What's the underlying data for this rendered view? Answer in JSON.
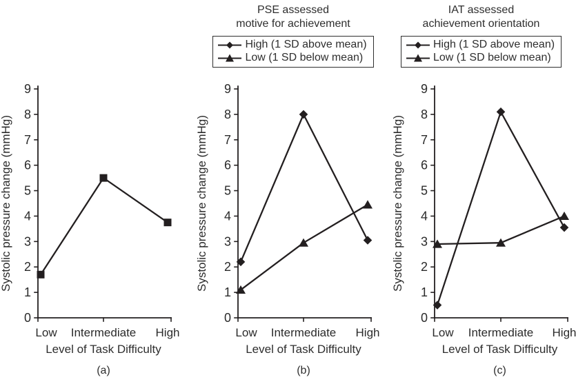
{
  "figure": {
    "background": "#ffffff",
    "ink_color": "#231f20"
  },
  "chart_data": [
    {
      "type": "line",
      "panel_label": "(a)",
      "title_lines": [],
      "categories": [
        "Low",
        "Intermediate",
        "High"
      ],
      "xlabel": "Level of Task Difficulty",
      "ylabel": "Systolic pressure change (mmHg)",
      "ylim": [
        0,
        9
      ],
      "ytick_step": 1,
      "grid": false,
      "legend": null,
      "series": [
        {
          "name": "Systolic pressure change",
          "marker": "square",
          "color": "#231f20",
          "values": [
            1.7,
            5.5,
            3.75
          ]
        }
      ]
    },
    {
      "type": "line",
      "panel_label": "(b)",
      "title_lines": [
        "PSE assessed",
        "motive for achievement"
      ],
      "categories": [
        "Low",
        "Intermediate",
        "High"
      ],
      "xlabel": "Level of Task Difficulty",
      "ylabel": "Systolic pressure change (mmHg)",
      "ylim": [
        0,
        9
      ],
      "ytick_step": 1,
      "grid": false,
      "legend": {
        "position": "top",
        "border": true,
        "items": [
          {
            "label": "High (1 SD above mean)",
            "marker": "diamond"
          },
          {
            "label": "Low (1 SD below mean)",
            "marker": "triangle"
          }
        ]
      },
      "series": [
        {
          "name": "High (1 SD above mean)",
          "marker": "diamond",
          "color": "#231f20",
          "values": [
            2.2,
            8.0,
            3.05
          ]
        },
        {
          "name": "Low (1 SD below mean)",
          "marker": "triangle",
          "color": "#231f20",
          "values": [
            1.1,
            2.95,
            4.45
          ]
        }
      ]
    },
    {
      "type": "line",
      "panel_label": "(c)",
      "title_lines": [
        "IAT assessed",
        "achievement orientation"
      ],
      "categories": [
        "Low",
        "Intermediate",
        "High"
      ],
      "xlabel": "Level of Task Difficulty",
      "ylabel": "Systolic pressure change (mmHg)",
      "ylim": [
        0,
        9
      ],
      "ytick_step": 1,
      "grid": false,
      "legend": {
        "position": "top",
        "border": true,
        "items": [
          {
            "label": "High (1 SD above mean)",
            "marker": "diamond"
          },
          {
            "label": "Low (1 SD below mean)",
            "marker": "triangle"
          }
        ]
      },
      "series": [
        {
          "name": "High (1 SD above mean)",
          "marker": "diamond",
          "color": "#231f20",
          "values": [
            0.5,
            8.1,
            3.55
          ]
        },
        {
          "name": "Low (1 SD below mean)",
          "marker": "triangle",
          "color": "#231f20",
          "values": [
            2.9,
            2.95,
            4.0
          ]
        }
      ]
    }
  ]
}
